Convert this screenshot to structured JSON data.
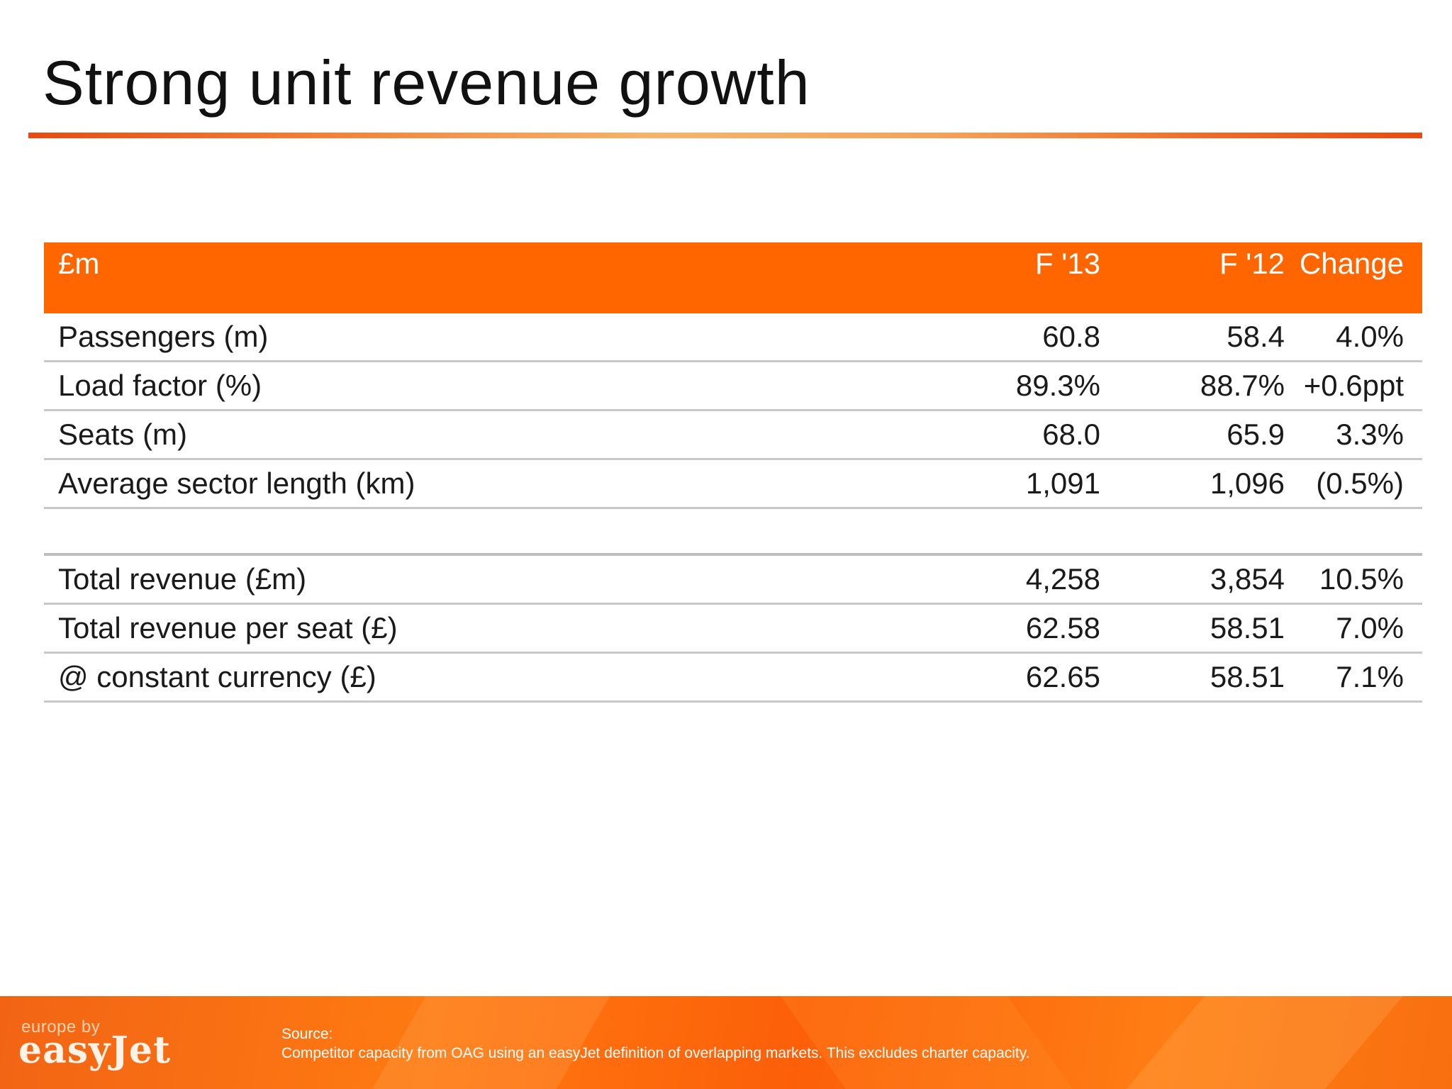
{
  "slide": {
    "title": "Strong unit revenue growth"
  },
  "table": {
    "headers": {
      "label": "£m",
      "f13": "F '13",
      "f12": "F '12",
      "change": "Change"
    },
    "rows": [
      {
        "label": "Passengers (m)",
        "f13": "60.8",
        "f12": "58.4",
        "change": "4.0%"
      },
      {
        "label": "Load factor (%)",
        "f13": "89.3%",
        "f12": "88.7%",
        "change": "+0.6ppt"
      },
      {
        "label": "Seats (m)",
        "f13": "68.0",
        "f12": "65.9",
        "change": "3.3%"
      },
      {
        "label": "Average sector length (km)",
        "f13": "1,091",
        "f12": "1,096",
        "change": "(0.5%)"
      },
      {
        "label": "Total revenue (£m)",
        "f13": "4,258",
        "f12": "3,854",
        "change": "10.5%"
      },
      {
        "label": "Total revenue per seat (£)",
        "f13": "62.58",
        "f12": "58.51",
        "change": "7.0%"
      },
      {
        "label": "@ constant currency (£)",
        "f13": "62.65",
        "f12": "58.51",
        "change": "7.1%"
      }
    ]
  },
  "footer": {
    "logo_small": "europe by",
    "logo_big": "easyJet",
    "source_label": "Source:",
    "source_text": "Competitor capacity from OAG using an easyJet definition of overlapping markets. This excludes charter capacity."
  },
  "colors": {
    "header_bg": "#ff6600",
    "footer_bg": "#ff7a12",
    "rule_gradient_start": "#e84a12",
    "rule_gradient_mid": "#f7b36a"
  }
}
